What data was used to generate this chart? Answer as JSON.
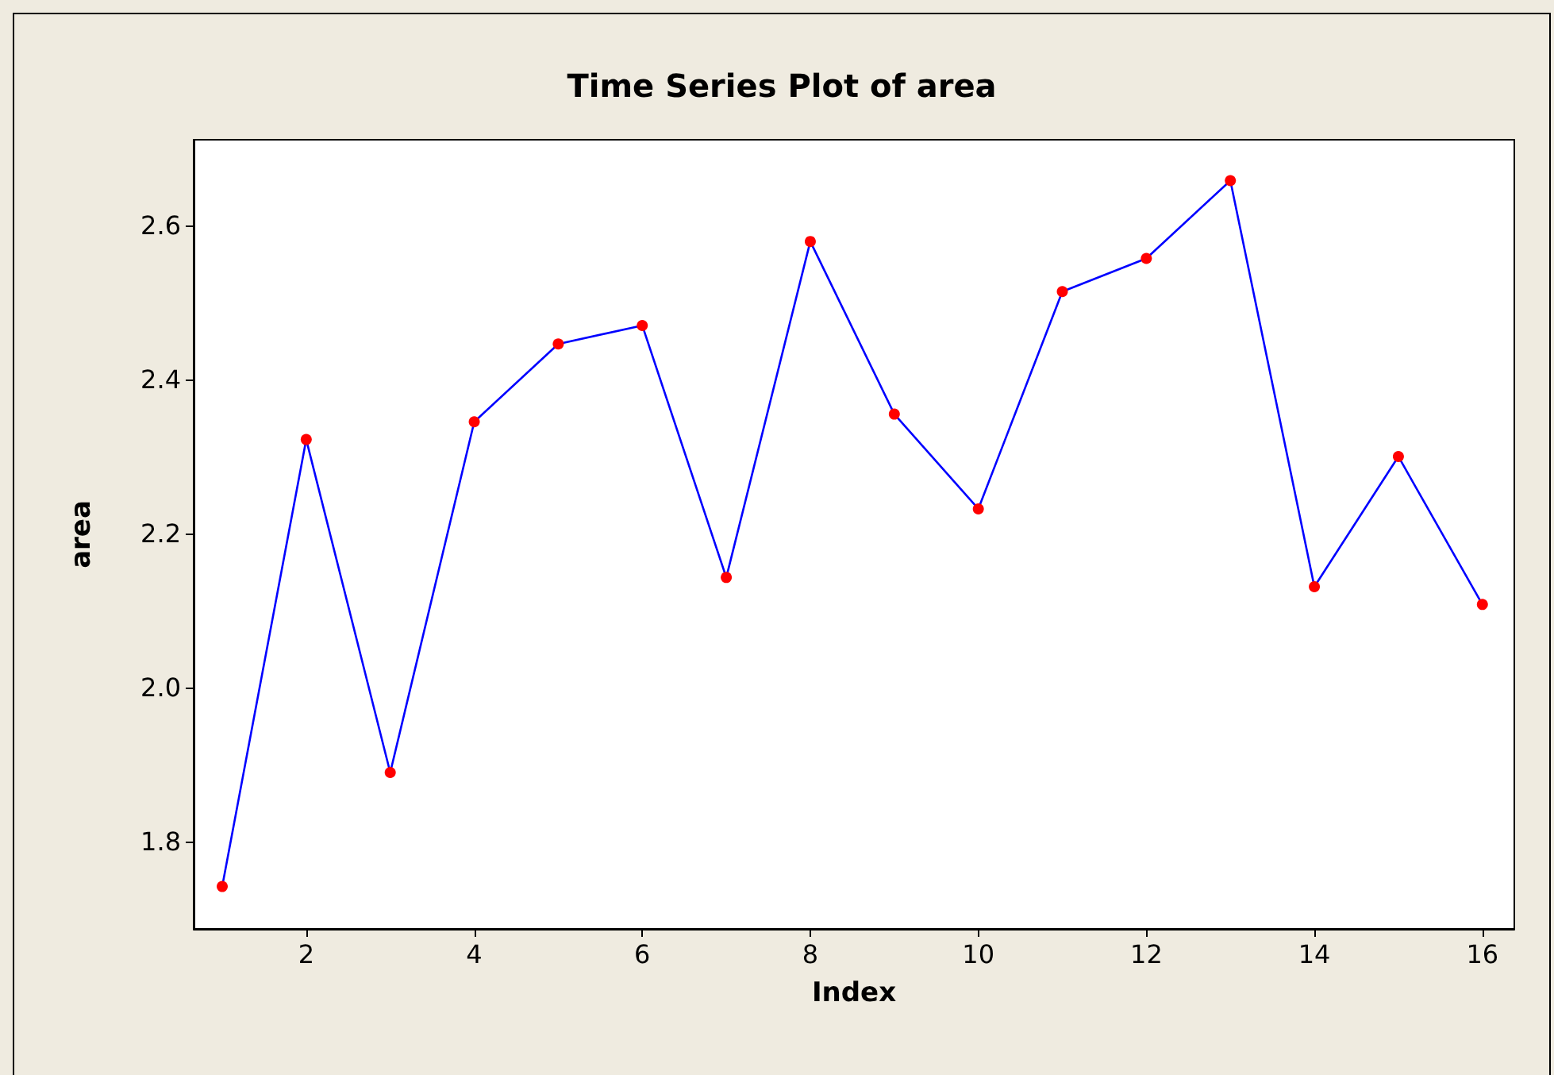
{
  "chart_data": {
    "type": "line",
    "title": "Time Series Plot of area",
    "xlabel": "Index",
    "ylabel": "area",
    "x": [
      1,
      2,
      3,
      4,
      5,
      6,
      7,
      8,
      9,
      10,
      11,
      12,
      13,
      14,
      15,
      16
    ],
    "series": [
      {
        "color": "#0000ff",
        "values": [
          1.742,
          2.322,
          1.89,
          2.345,
          2.446,
          2.47,
          2.143,
          2.579,
          2.355,
          2.232,
          2.514,
          2.557,
          2.658,
          2.131,
          2.3,
          2.108
        ]
      }
    ],
    "marker": "circle",
    "line_style": "solid",
    "grid": false,
    "xlim": [
      0.66,
      16.38
    ],
    "xticks": [
      2,
      4,
      6,
      8,
      10,
      12,
      14,
      16
    ],
    "ylim": [
      1.687,
      2.711
    ],
    "yticks": [
      1.8,
      {
        "value": 2,
        "label": "2.0"
      },
      2.2,
      2.4,
      2.6
    ]
  }
}
